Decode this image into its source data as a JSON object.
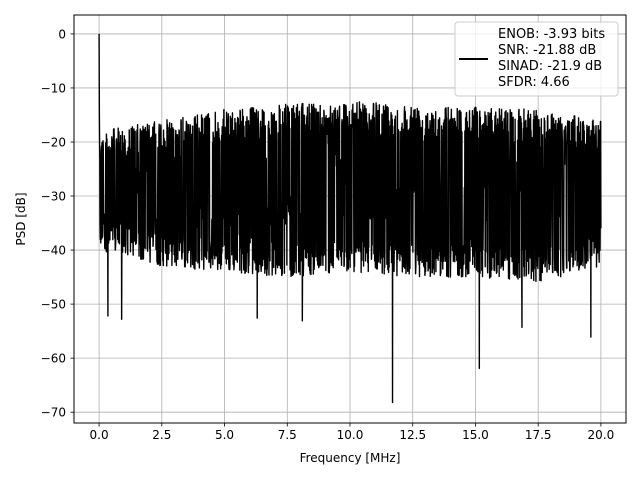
{
  "chart_data": {
    "type": "line",
    "xlabel": "Frequency [MHz]",
    "ylabel": "PSD [dB]",
    "xlim": [
      -1.0,
      21.0
    ],
    "ylim": [
      -72.0,
      3.5
    ],
    "xticks": [
      0.0,
      2.5,
      5.0,
      7.5,
      10.0,
      12.5,
      15.0,
      17.5,
      20.0
    ],
    "xtick_labels": [
      "0.0",
      "2.5",
      "5.0",
      "7.5",
      "10.0",
      "12.5",
      "15.0",
      "17.5",
      "20.0"
    ],
    "yticks": [
      0,
      -10,
      -20,
      -30,
      -40,
      -50,
      -60,
      -70
    ],
    "ytick_labels": [
      "0",
      "−10",
      "−20",
      "−30",
      "−40",
      "−50",
      "−60",
      "−70"
    ],
    "grid": true,
    "legend_position": "top-right",
    "series": [
      {
        "name": "ENOB: -3.93 bits\nSNR: -21.88 dB\nSINAD: -21.9 dB\nSFDR: 4.66",
        "color": "#000000",
        "x_range": [
          0.0,
          20.0
        ],
        "n_points": 2048,
        "peak": {
          "x": 0.0,
          "y": 0.0
        },
        "band_upper_envelope": [
          [
            0.0,
            -18
          ],
          [
            2.5,
            -16
          ],
          [
            5.0,
            -14
          ],
          [
            7.5,
            -13
          ],
          [
            10.0,
            -12.5
          ],
          [
            12.5,
            -13
          ],
          [
            15.0,
            -13.5
          ],
          [
            17.5,
            -14
          ],
          [
            20.0,
            -16
          ]
        ],
        "band_lower_envelope": [
          [
            0.0,
            -40
          ],
          [
            2.5,
            -43
          ],
          [
            5.0,
            -44
          ],
          [
            7.5,
            -45
          ],
          [
            10.0,
            -44
          ],
          [
            12.5,
            -45
          ],
          [
            15.0,
            -45
          ],
          [
            17.5,
            -46
          ],
          [
            20.0,
            -43
          ]
        ],
        "deep_notches": [
          {
            "x": 0.35,
            "y": -52.2
          },
          {
            "x": 0.9,
            "y": -52.8
          },
          {
            "x": 6.3,
            "y": -52.6
          },
          {
            "x": 8.1,
            "y": -53.1
          },
          {
            "x": 11.7,
            "y": -68.2
          },
          {
            "x": 15.15,
            "y": -61.9
          },
          {
            "x": 16.85,
            "y": -54.3
          },
          {
            "x": 19.6,
            "y": -56.1
          }
        ]
      }
    ],
    "legend_lines": [
      "ENOB: -3.93 bits",
      "SNR: -21.88 dB",
      "SINAD: -21.9 dB",
      "SFDR: 4.66"
    ]
  }
}
